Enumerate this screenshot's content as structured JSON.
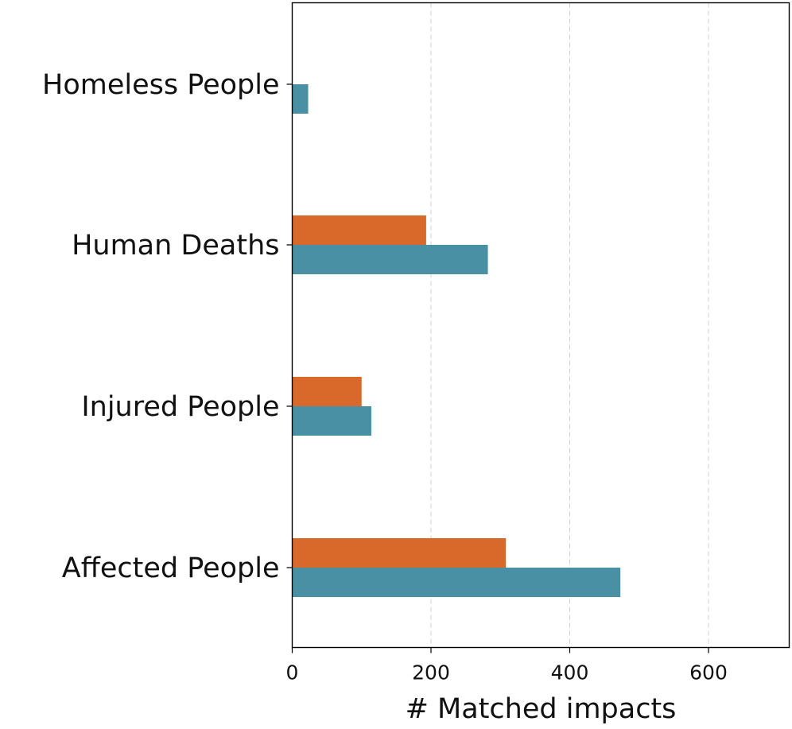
{
  "chart_data": {
    "type": "bar",
    "orientation": "horizontal",
    "categories": [
      "Homeless People",
      "Human Deaths",
      "Injured People",
      "Affected People"
    ],
    "series": [
      {
        "color": "#d9692a",
        "values": [
          0,
          193,
          100,
          308
        ]
      },
      {
        "color": "#4a90a4",
        "values": [
          23,
          282,
          114,
          473
        ]
      }
    ],
    "xlabel": "# Matched impacts",
    "ylabel": "",
    "xlim": [
      0,
      720
    ],
    "xticks": [
      0,
      200,
      400,
      600
    ],
    "xtick_labels": [
      "0",
      "200",
      "400",
      "600"
    ],
    "grid": {
      "x": true,
      "y": false,
      "style": "dashed"
    },
    "legend": "none"
  }
}
